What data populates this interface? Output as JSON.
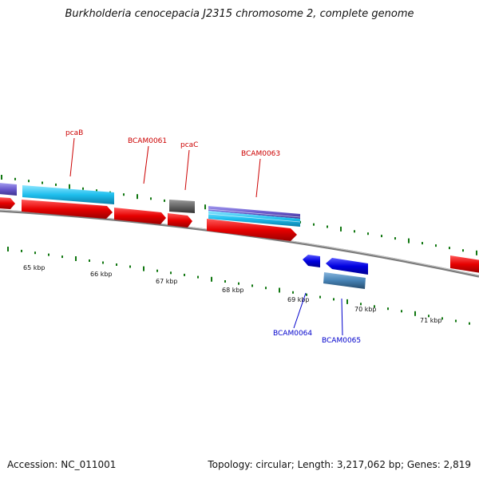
{
  "title": "Burkholderia cenocepacia J2315 chromosome 2, complete genome",
  "footer": {
    "accession": "Accession: NC_011001",
    "summary": "Topology: circular; Length: 3,217,062 bp; Genes: 2,819"
  },
  "scale": {
    "ticks": [
      "65 kbp",
      "66 kbp",
      "67 kbp",
      "68 kbp",
      "69 kbp",
      "70 kbp",
      "71 kbp"
    ]
  },
  "genes": {
    "pcaB": "pcaB",
    "BCAM0061": "BCAM0061",
    "pcaC": "pcaC",
    "BCAM0063": "BCAM0063",
    "BCAM0064": "BCAM0064",
    "BCAM0065": "BCAM0065"
  },
  "colors": {
    "forward_cds": "#ee1111",
    "forward_label": "#cc0000",
    "reverse_cds": "#1111ee",
    "reverse_label": "#0000cc",
    "gene_light_blue": "#22bbee",
    "gene_purple": "#6a5acd",
    "gene_gray": "#666666",
    "gene_steel": "#4682b4",
    "tick_green": "#117711",
    "backbone": "#888888"
  }
}
